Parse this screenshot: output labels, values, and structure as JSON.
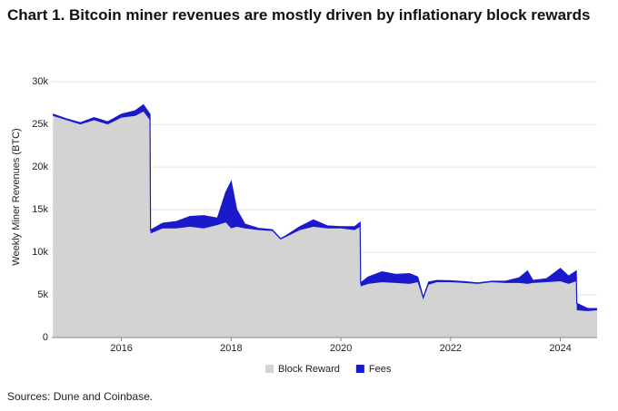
{
  "chart_data": {
    "type": "area",
    "title": "Chart 1. Bitcoin miner revenues are mostly driven by inflationary block rewards",
    "ylabel": "Weekly Miner Revenues (BTC)",
    "source": "Sources: Dune and Coinbase.",
    "stacked": true,
    "grid": true,
    "legend": "bottom",
    "x": [
      2014.75,
      2015.0,
      2015.25,
      2015.5,
      2015.75,
      2016.0,
      2016.25,
      2016.4,
      2016.52,
      2016.53,
      2016.75,
      2017.0,
      2017.25,
      2017.5,
      2017.75,
      2017.9,
      2018.0,
      2018.1,
      2018.25,
      2018.5,
      2018.75,
      2018.9,
      2019.0,
      2019.25,
      2019.5,
      2019.75,
      2020.0,
      2020.25,
      2020.35,
      2020.36,
      2020.5,
      2020.75,
      2021.0,
      2021.25,
      2021.4,
      2021.5,
      2021.6,
      2021.75,
      2022.0,
      2022.25,
      2022.5,
      2022.75,
      2023.0,
      2023.25,
      2023.4,
      2023.5,
      2023.75,
      2024.0,
      2024.15,
      2024.29,
      2024.3,
      2024.5,
      2024.67
    ],
    "series": [
      {
        "name": "Block Reward",
        "color": "#d3d3d3",
        "values": [
          26000,
          25500,
          25000,
          25500,
          25000,
          25800,
          26000,
          26500,
          25500,
          12200,
          12800,
          12800,
          13000,
          12800,
          13200,
          13500,
          12800,
          13000,
          12800,
          12600,
          12500,
          11500,
          11800,
          12600,
          13000,
          12800,
          12800,
          12600,
          13000,
          6000,
          6300,
          6500,
          6400,
          6300,
          6500,
          4500,
          6200,
          6500,
          6500,
          6400,
          6300,
          6500,
          6400,
          6400,
          6300,
          6400,
          6500,
          6600,
          6300,
          6600,
          3200,
          3100,
          3200
        ]
      },
      {
        "name": "Fees",
        "color": "#1a1acc",
        "values": [
          200,
          150,
          200,
          300,
          300,
          400,
          600,
          800,
          700,
          400,
          600,
          800,
          1200,
          1500,
          800,
          3500,
          5500,
          2000,
          500,
          200,
          150,
          100,
          150,
          400,
          800,
          300,
          200,
          400,
          500,
          400,
          800,
          1200,
          1000,
          1200,
          600,
          200,
          300,
          200,
          150,
          150,
          100,
          100,
          200,
          600,
          1500,
          300,
          400,
          1500,
          900,
          1200,
          800,
          300,
          200
        ]
      }
    ],
    "xlim": [
      2014.73,
      2024.67
    ],
    "xticks": [
      2016,
      2018,
      2020,
      2022,
      2024
    ],
    "ylim": [
      0,
      33000
    ],
    "yticks": [
      0,
      {
        "value": 5000,
        "label": "5k"
      },
      {
        "value": 10000,
        "label": "10k"
      },
      {
        "value": 15000,
        "label": "15k"
      },
      {
        "value": 20000,
        "label": "20k"
      },
      {
        "value": 25000,
        "label": "25k"
      },
      {
        "value": 30000,
        "label": "30k"
      }
    ]
  }
}
